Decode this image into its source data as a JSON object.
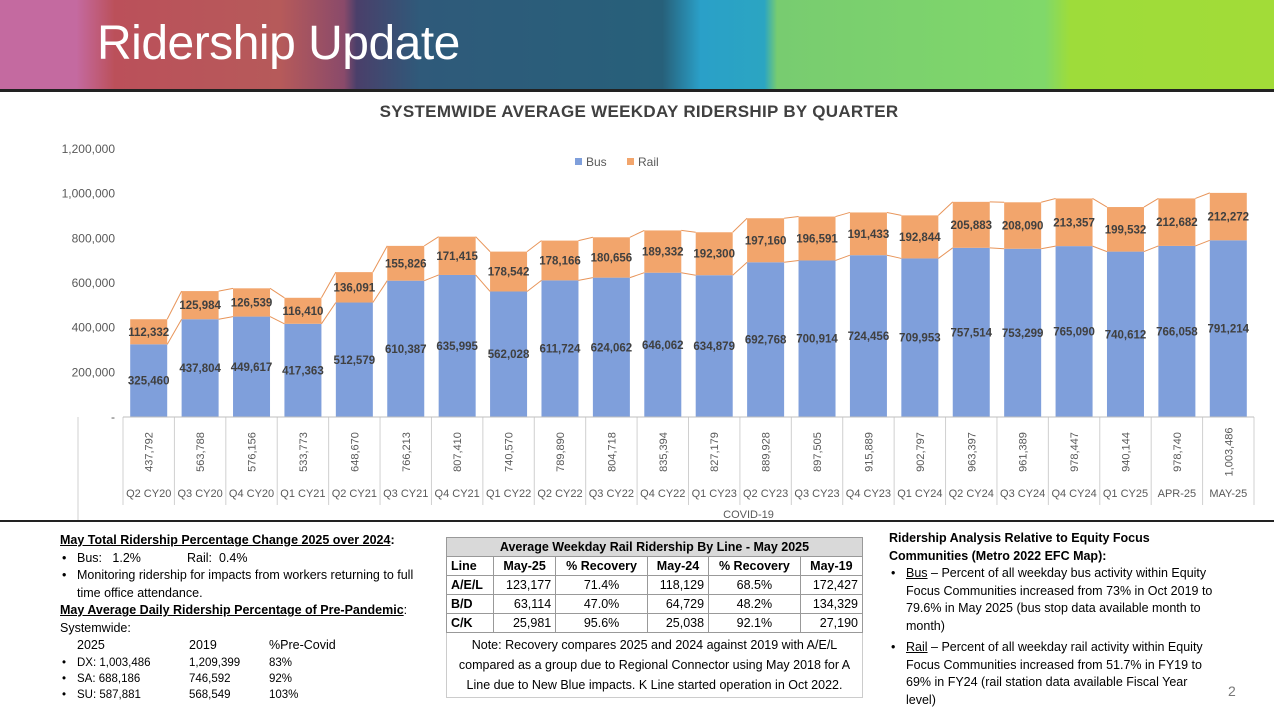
{
  "title": "Ridership Update",
  "page_number": "2",
  "chart_data": {
    "type": "bar",
    "stacked": true,
    "title": "SYSTEMWIDE AVERAGE WEEKDAY RIDERSHIP BY QUARTER",
    "legend": [
      "Bus",
      "Rail"
    ],
    "legend_position": "top",
    "ylim": [
      0,
      1200000
    ],
    "yticks": [
      "-",
      "200,000",
      "400,000",
      "600,000",
      "800,000",
      "1,000,000",
      "1,200,000"
    ],
    "ytick_values": [
      0,
      200000,
      400000,
      600000,
      800000,
      1000000,
      1200000
    ],
    "categories": [
      "Q2 CY20",
      "Q3 CY20",
      "Q4 CY20",
      "Q1 CY21",
      "Q2 CY21",
      "Q3 CY21",
      "Q4 CY21",
      "Q1 CY22",
      "Q2 CY22",
      "Q3 CY22",
      "Q4 CY22",
      "Q1 CY23",
      "Q2 CY23",
      "Q3 CY23",
      "Q4 CY23",
      "Q1 CY24",
      "Q2 CY24",
      "Q3 CY24",
      "Q4 CY24",
      "Q1 CY25",
      "APR-25",
      "MAY-25"
    ],
    "series": [
      {
        "name": "Bus",
        "color": "#7f9fdb",
        "values": [
          325460,
          437804,
          449617,
          417363,
          512579,
          610387,
          635995,
          562028,
          611724,
          624062,
          646062,
          634879,
          692768,
          700914,
          724456,
          709953,
          757514,
          753299,
          765090,
          740612,
          766058,
          791214
        ]
      },
      {
        "name": "Rail",
        "color": "#f2a56c",
        "values": [
          112332,
          125984,
          126539,
          116410,
          136091,
          155826,
          171415,
          178542,
          178166,
          180656,
          189332,
          192300,
          197160,
          196591,
          191433,
          192844,
          205883,
          208090,
          213357,
          199532,
          212682,
          212272
        ]
      }
    ],
    "bus_labels": [
      "325,460",
      "437,804",
      "449,617",
      "417,363",
      "512,579",
      "610,387",
      "635,995",
      "562,028",
      "611,724",
      "624,062",
      "646,062",
      "634,879",
      "692,768",
      "700,914",
      "724,456",
      "709,953",
      "757,514",
      "753,299",
      "765,090",
      "740,612",
      "766,058",
      "791,214"
    ],
    "rail_labels": [
      "112,332",
      "125,984",
      "126,539",
      "116,410",
      "136,091",
      "155,826",
      "171,415",
      "178,542",
      "178,166",
      "180,656",
      "189,332",
      "192,300",
      "197,160",
      "196,591",
      "191,433",
      "192,844",
      "205,883",
      "208,090",
      "213,357",
      "199,532",
      "212,682",
      "212,272"
    ],
    "totals": [
      "437,792",
      "563,788",
      "576,156",
      "533,773",
      "648,670",
      "766,213",
      "807,410",
      "740,570",
      "789,890",
      "804,718",
      "835,394",
      "827,179",
      "889,928",
      "897,505",
      "915,889",
      "902,797",
      "963,397",
      "961,389",
      "978,447",
      "940,144",
      "978,740",
      "1,003,486"
    ],
    "group_label": "COVID-19"
  },
  "left": {
    "heading1": "May Total Ridership Percentage Change 2025 over 2024",
    "bus": "Bus:   1.2%",
    "rail": "Rail:  0.4%",
    "monitoring": "Monitoring ridership for impacts from workers  returning to full time office attendance.",
    "heading2": "May Average Daily Ridership Percentage of Pre-Pandemic",
    "systemwide": "Systemwide:",
    "cols": [
      "2025",
      "2019",
      "%Pre-Covid"
    ],
    "rows": [
      {
        "label": "DX:  1,003,486",
        "v2019": "1,209,399",
        "pct": "83%"
      },
      {
        "label": "SA:  688,186",
        "v2019": "746,592",
        "pct": "92%"
      },
      {
        "label": "SU:  587,881",
        "v2019": "568,549",
        "pct": "103%"
      }
    ]
  },
  "rail_table": {
    "title": "Average Weekday Rail Ridership By Line - May 2025",
    "headers": [
      "Line",
      "May-25",
      "% Recovery",
      "May-24",
      "% Recovery",
      "May-19"
    ],
    "rows": [
      [
        "A/E/L",
        "123,177",
        "71.4%",
        "118,129",
        "68.5%",
        "172,427"
      ],
      [
        "B/D",
        "63,114",
        "47.0%",
        "64,729",
        "48.2%",
        "134,329"
      ],
      [
        "C/K",
        "25,981",
        "95.6%",
        "25,038",
        "92.1%",
        "27,190"
      ]
    ],
    "note": "Note: Recovery compares 2025 and 2024 against 2019 with A/E/L compared as a group due to Regional Connector using May 2018 for A Line due to New Blue impacts. K Line started operation in Oct 2022."
  },
  "right": {
    "heading": "Ridership Analysis Relative to Equity Focus Communities (Metro 2022 EFC Map)",
    "bus_label": "Bus",
    "bus_text": " – Percent of all weekday bus activity within Equity Focus Communities increased from 73% in Oct 2019 to 79.6% in May 2025 (bus stop data available month to month)",
    "rail_label": "Rail",
    "rail_text": " – Percent of all weekday rail activity within Equity Focus Communities increased from 51.7% in FY19 to 69% in FY24 (rail station data available Fiscal Year level)"
  }
}
